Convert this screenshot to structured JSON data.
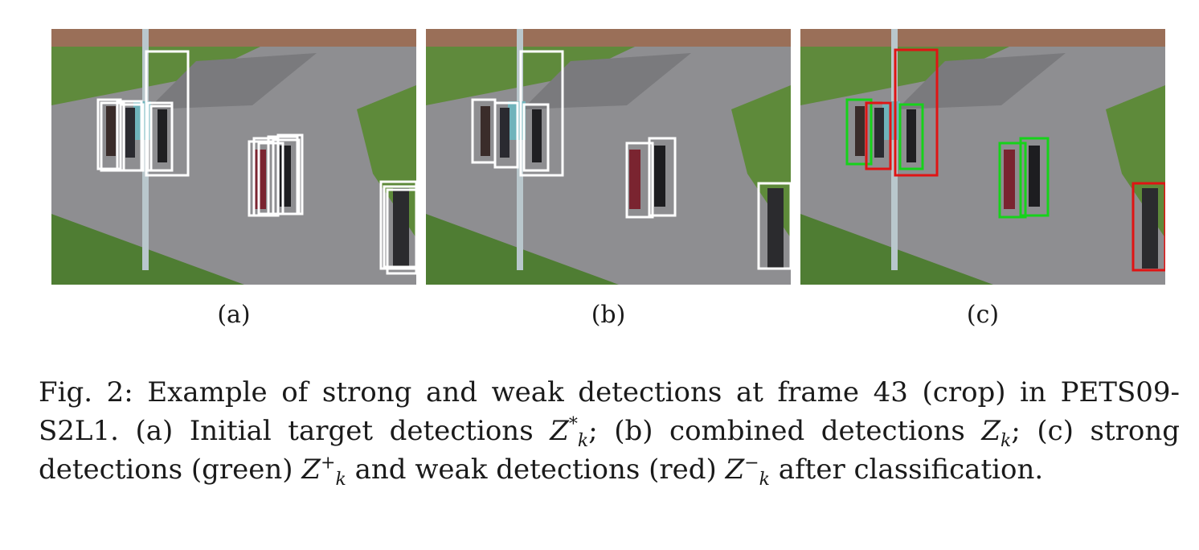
{
  "figure": {
    "panels": [
      {
        "id": "a",
        "label": "(a)",
        "box_color": "#ffffff"
      },
      {
        "id": "b",
        "label": "(b)",
        "box_color": "#ffffff"
      },
      {
        "id": "c",
        "label": "(c)",
        "strong_color": "#16d21a",
        "weak_color": "#e01414"
      }
    ]
  },
  "caption": {
    "line1": "Fig. 2: Example of strong and weak detections at frame 43 (crop) in PETS09-",
    "line2_pre": "S2L1. (a) Initial target detections ",
    "line2_mid": "; (b) combined detections ",
    "line2_post": "; (c) strong",
    "line3_pre": "detections (green) ",
    "line3_mid": " and weak detections (red) ",
    "line3_post": " after classification.",
    "sym_Z": "Z",
    "sub_k": "k",
    "sup_star": "*",
    "sup_plus": "+",
    "sup_minus": "−"
  }
}
